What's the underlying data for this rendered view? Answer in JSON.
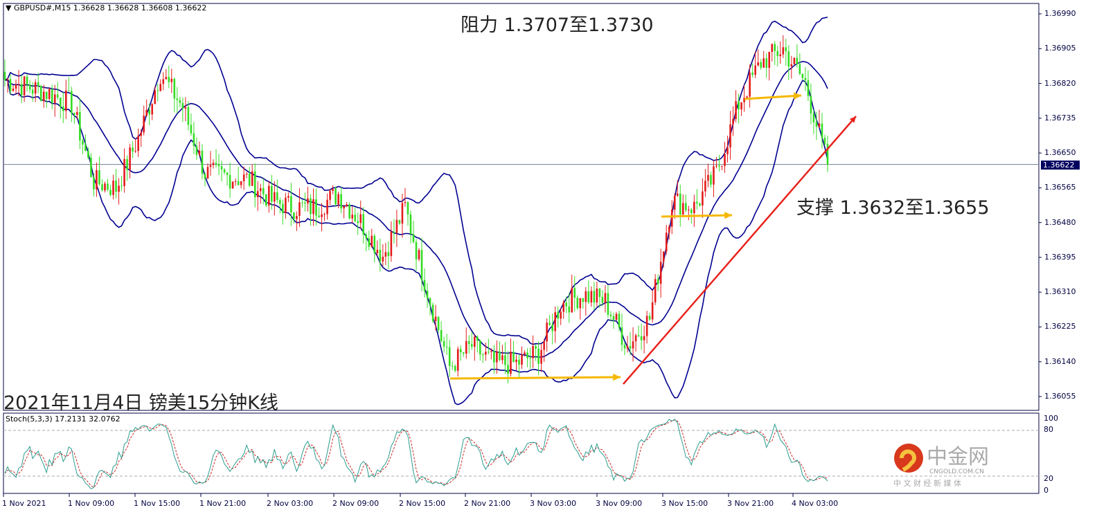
{
  "header": {
    "symbol": "GBPUSD#,M15",
    "ohlc": "1.36628 1.36628 1.36608 1.36622"
  },
  "annotations": {
    "resistance": "阻力 1.3707至1.3730",
    "support": "支撑 1.3632至1.3655",
    "caption": "2021年11月4日 镑美15分钟K线"
  },
  "indicator": {
    "label": "Stoch(5,3,3) 17.2131 32.0762",
    "levels": [
      "100",
      "80",
      "20",
      "0"
    ]
  },
  "current_price": "1.36622",
  "watermark": {
    "name": "中金网",
    "url": "CNGOLD.COM.CN",
    "tagline": "中 文 财 经 新 媒 体"
  },
  "colors": {
    "bull": "#e31b1b",
    "bear": "#33dd22",
    "bands": "#000090",
    "trend_arrow": "#e8231c",
    "level_arrow": "#f5b800",
    "stoch_main": "#2a9d8f",
    "stoch_signal": "#cc2222"
  },
  "chart_data": {
    "type": "candlestick",
    "title": "GBPUSD#,M15",
    "price_ticks": [
      "1.36990",
      "1.36905",
      "1.36820",
      "1.36735",
      "1.36650",
      "1.36565",
      "1.36480",
      "1.36395",
      "1.36310",
      "1.36225",
      "1.36140",
      "1.36055"
    ],
    "ylim": [
      1.3603,
      1.3702
    ],
    "x_ticks": [
      "1 Nov 2021",
      "1 Nov 09:00",
      "1 Nov 15:00",
      "1 Nov 21:00",
      "2 Nov 03:00",
      "2 Nov 09:00",
      "2 Nov 15:00",
      "2 Nov 21:00",
      "3 Nov 03:00",
      "3 Nov 09:00",
      "3 Nov 15:00",
      "3 Nov 21:00",
      "4 Nov 03:00"
    ],
    "approx_close_every_2h": [
      1.36829,
      1.36812,
      1.36796,
      1.3677,
      1.36581,
      1.36564,
      1.36686,
      1.36846,
      1.36762,
      1.36601,
      1.36593,
      1.36584,
      1.36534,
      1.36517,
      1.36517,
      1.3655,
      1.36483,
      1.36398,
      1.36517,
      1.36314,
      1.36128,
      1.36179,
      1.36136,
      1.36136,
      1.36162,
      1.3628,
      1.36305,
      1.36288,
      1.36179,
      1.36246,
      1.36534,
      1.36517,
      1.36601,
      1.3677,
      1.36872,
      1.36905,
      1.36821,
      1.36622
    ],
    "overlays": [
      "Bollinger Bands",
      "Stochastic(5,3,3)"
    ]
  }
}
